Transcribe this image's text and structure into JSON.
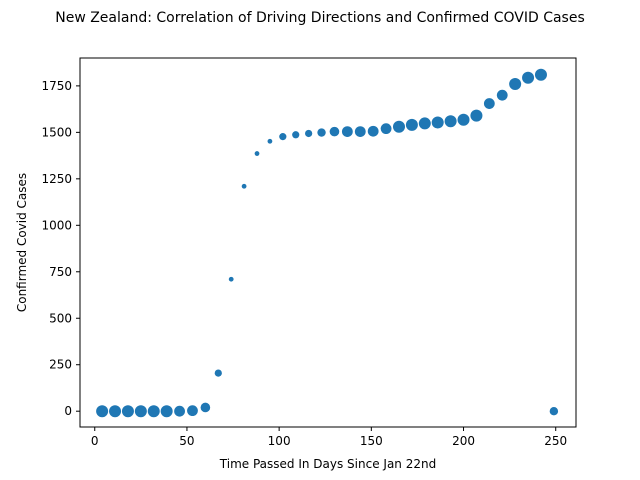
{
  "chart_data": {
    "type": "scatter",
    "title": "New Zealand: Correlation of Driving Directions and Confirmed COVID Cases",
    "xlabel": "Time Passed In Days Since Jan 22nd",
    "ylabel": "Confirmed Covid Cases",
    "xlim": [
      -8,
      261
    ],
    "ylim": [
      -85,
      1900
    ],
    "xticks": [
      0,
      50,
      100,
      150,
      200,
      250
    ],
    "yticks": [
      0,
      250,
      500,
      750,
      1000,
      1250,
      1500,
      1750
    ],
    "xtick_labels": [
      "0",
      "50",
      "100",
      "150",
      "200",
      "250"
    ],
    "ytick_labels": [
      "0",
      "250",
      "500",
      "750",
      "1000",
      "1250",
      "1500",
      "1750"
    ],
    "grid": false,
    "color": "#1f77b4",
    "series": [
      {
        "x": [
          4,
          11,
          18,
          25,
          32,
          39,
          46,
          53,
          60,
          67,
          74,
          81,
          88,
          95,
          102,
          109,
          116,
          123,
          130,
          137,
          144,
          151,
          158,
          165,
          172,
          179,
          186,
          193,
          200,
          207,
          214,
          221,
          228,
          235,
          242,
          249
        ],
        "y": [
          0,
          0,
          0,
          0,
          0,
          0,
          0,
          3,
          20,
          205,
          710,
          1210,
          1386,
          1452,
          1477,
          1487,
          1494,
          1499,
          1504,
          1504,
          1504,
          1506,
          1520,
          1530,
          1540,
          1548,
          1553,
          1560,
          1568,
          1590,
          1655,
          1700,
          1760,
          1794,
          1810,
          0
        ],
        "size": [
          10,
          10,
          10,
          10,
          10,
          10,
          9,
          9,
          8,
          6,
          4,
          4,
          4,
          4,
          6,
          6,
          6,
          7,
          8,
          9,
          9,
          9,
          9,
          10,
          10,
          10,
          10,
          10,
          10,
          10,
          9,
          9,
          10,
          10,
          10,
          7
        ]
      }
    ]
  }
}
